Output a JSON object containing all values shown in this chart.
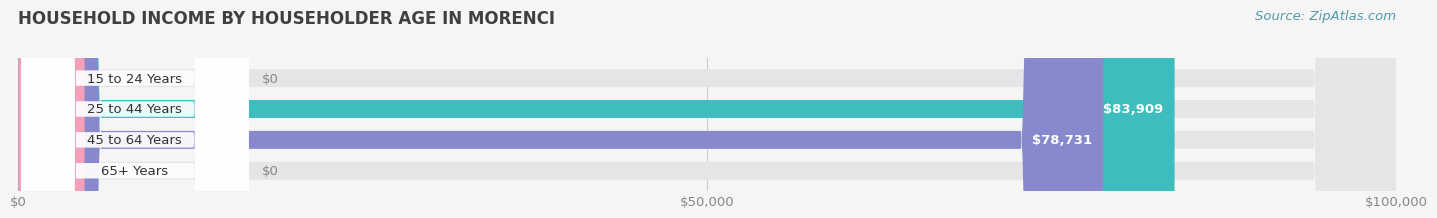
{
  "title": "HOUSEHOLD INCOME BY HOUSEHOLDER AGE IN MORENCI",
  "source": "Source: ZipAtlas.com",
  "categories": [
    "15 to 24 Years",
    "25 to 44 Years",
    "45 to 64 Years",
    "65+ Years"
  ],
  "values": [
    0,
    83909,
    78731,
    0
  ],
  "bar_colors": [
    "#c9a0c9",
    "#3dbdbd",
    "#8888cc",
    "#f4a0b8"
  ],
  "value_labels": [
    "$0",
    "$83,909",
    "$78,731",
    "$0"
  ],
  "xlim": [
    0,
    100000
  ],
  "xticks": [
    0,
    50000,
    100000
  ],
  "xticklabels": [
    "$0",
    "$50,000",
    "$100,000"
  ],
  "background_color": "#f5f5f5",
  "bar_background_color": "#e5e5e5",
  "title_color": "#404040",
  "source_color": "#5599aa",
  "title_fontsize": 12,
  "source_fontsize": 9.5,
  "tick_fontsize": 9.5
}
